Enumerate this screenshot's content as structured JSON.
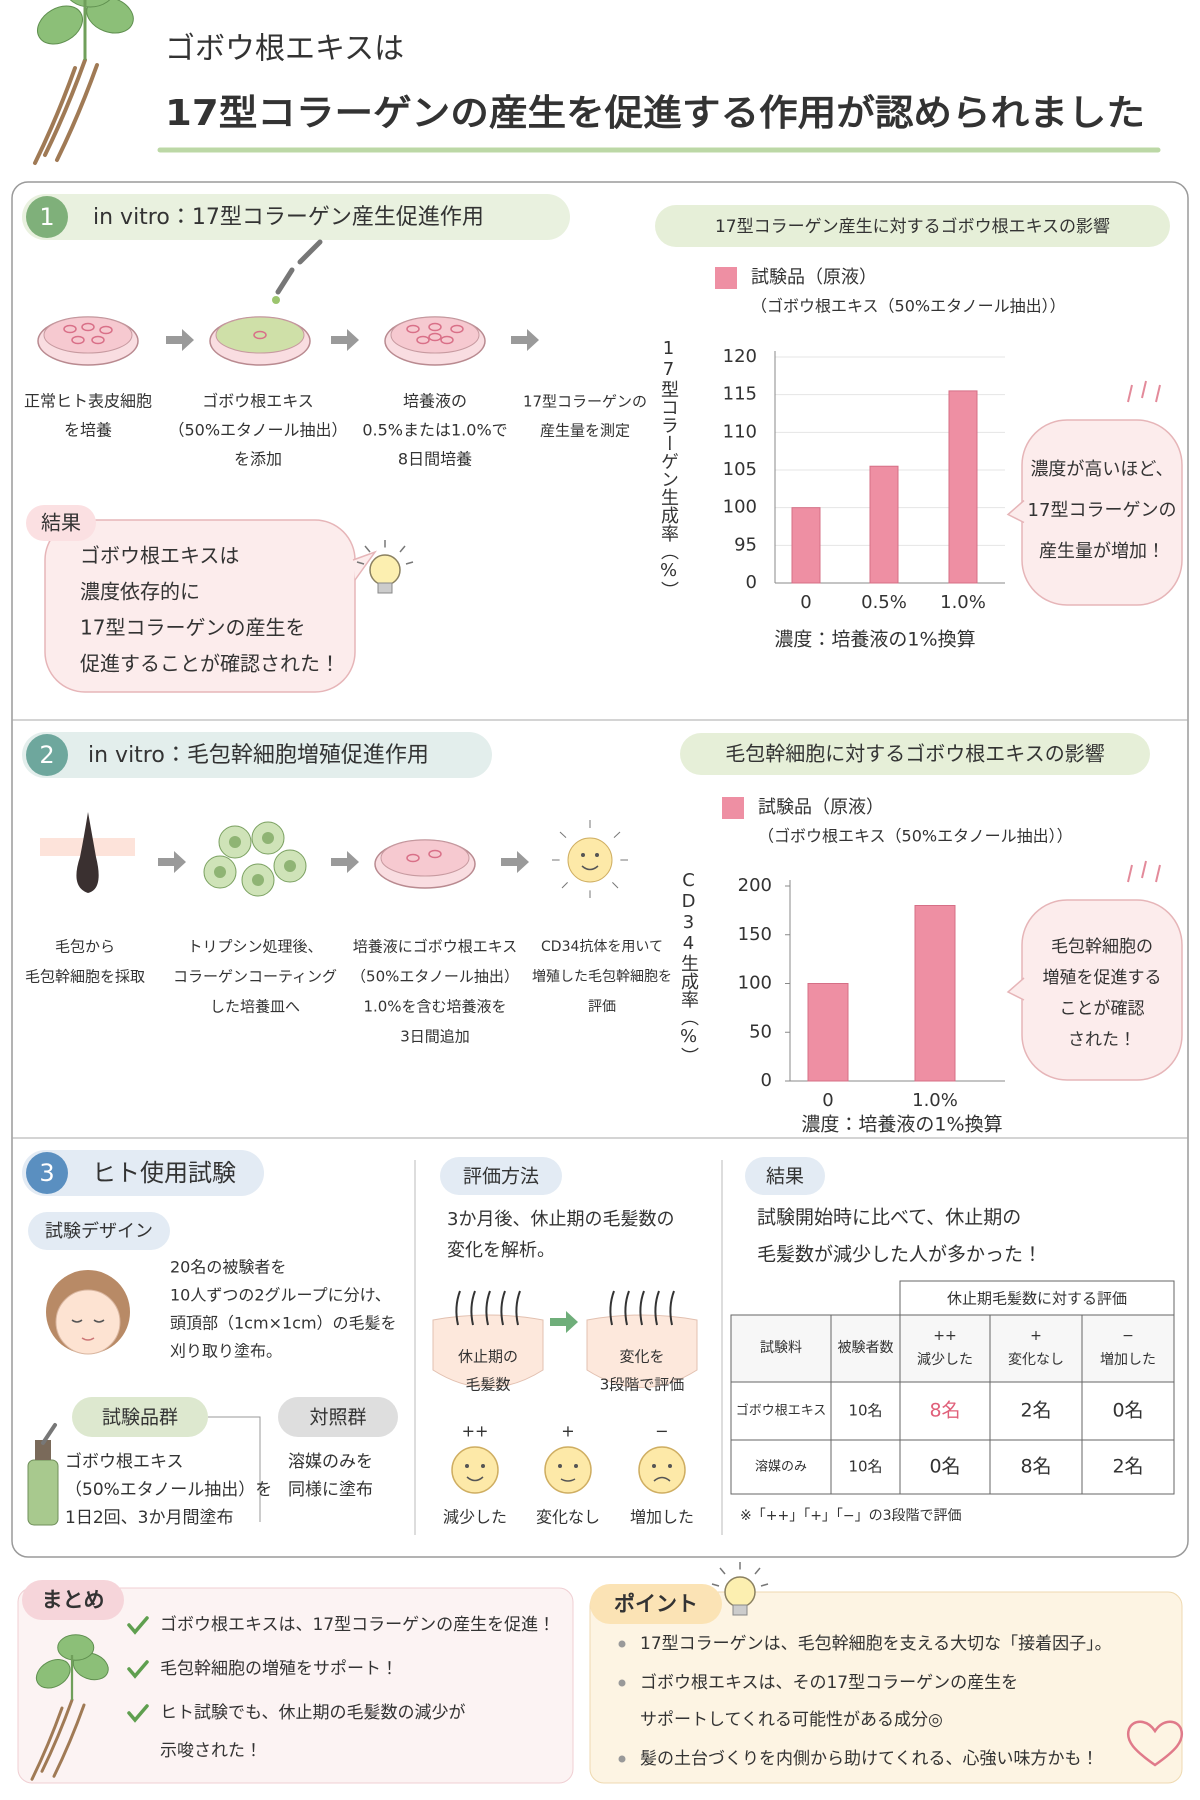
{
  "header": {
    "title": "ゴボウ根エキスは",
    "headline": "17型コラーゲンの産生を促進する作用が認められました"
  },
  "section1": {
    "number": "1",
    "title": "in vitro：17型コラーゲン産生促進作用",
    "steps": [
      [
        "正常ヒト表皮細胞",
        "を培養"
      ],
      [
        "ゴボウ根エキス",
        "（50%エタノール抽出）",
        "を添加"
      ],
      [
        "培養液の",
        "0.5%または1.0%で",
        "8日間培養"
      ],
      [
        "17型コラーゲンの",
        "産生量を測定"
      ]
    ],
    "result": {
      "label": "結果",
      "lines": [
        "ゴボウ根エキスは",
        "濃度依存的に",
        "17型コラーゲンの産生を",
        "促進することが確認された！"
      ]
    },
    "chart": {
      "type": "bar",
      "title": "17型コラーゲン産生に対するゴボウ根エキスの影響",
      "legend": "試験品（原液）",
      "legend_note": "（ゴボウ根エキス（50%エタノール抽出））",
      "y_label": "17型コラーゲン生成率（%）",
      "x_label": "濃度：培養液の1%換算",
      "categories": [
        "0",
        "0.5%",
        "1.0%"
      ],
      "values": [
        100,
        105.5,
        115.5
      ],
      "color": "#ee8fa3",
      "ylim": [
        0,
        120
      ],
      "yticks": [
        0,
        95,
        100,
        105,
        110,
        115,
        120
      ],
      "grid": true
    },
    "callout": [
      "濃度が高いほど、",
      "17型コラーゲンの",
      "産生量が増加！"
    ]
  },
  "section2": {
    "number": "2",
    "title": "in vitro：毛包幹細胞増殖促進作用",
    "steps": [
      [
        "毛包から",
        "毛包幹細胞を採取"
      ],
      [
        "トリプシン処理後、",
        "コラーゲンコーティング",
        "した培養皿へ"
      ],
      [
        "培養液にゴボウ根エキス",
        "（50%エタノール抽出）",
        "1.0%を含む培養液を",
        "3日間追加"
      ],
      [
        "CD34抗体を用いて",
        "増殖した毛包幹細胞を",
        "評価"
      ]
    ],
    "chart": {
      "type": "bar",
      "title": "毛包幹細胞に対するゴボウ根エキスの影響",
      "legend": "試験品（原液）",
      "legend_note": "（ゴボウ根エキス（50%エタノール抽出））",
      "y_label": "CD34生成率（%）",
      "x_label": "濃度：培養液の1%換算",
      "categories": [
        "0",
        "1.0%"
      ],
      "values": [
        100,
        180
      ],
      "color": "#ee8fa3",
      "ylim": [
        0,
        200
      ],
      "yticks": [
        0,
        50,
        100,
        150,
        200
      ],
      "grid": false
    },
    "callout": [
      "毛包幹細胞の",
      "増殖を促進する",
      "ことが確認",
      "された！"
    ]
  },
  "section3": {
    "number": "3",
    "title": "ヒト使用試験",
    "design": {
      "label": "試験デザイン",
      "lines": [
        "20名の被験者を",
        "10人ずつの2グループに分け、",
        "頭頂部（1cm×1cm）の毛髪を",
        "刈り取り塗布。"
      ],
      "test_group": {
        "label": "試験品群",
        "lines": [
          "ゴボウ根エキス",
          "（50%エタノール抽出）を",
          "1日2回、3か月間塗布"
        ]
      },
      "control_group": {
        "label": "対照群",
        "lines": [
          "溶媒のみを",
          "同様に塗布"
        ]
      }
    },
    "method": {
      "label": "評価方法",
      "lines": [
        "3か月後、休止期の毛髪数の",
        "変化を解析。"
      ],
      "before": [
        "休止期の",
        "毛髪数"
      ],
      "after": [
        "変化を",
        "3段階で評価"
      ],
      "scale": [
        {
          "symbol": "++",
          "label": "減少した"
        },
        {
          "symbol": "+",
          "label": "変化なし"
        },
        {
          "symbol": "−",
          "label": "増加した"
        }
      ]
    },
    "result": {
      "label": "結果",
      "lines": [
        "試験開始時に比べて、休止期の",
        "毛髪数が減少した人が多かった！"
      ],
      "table": {
        "group_header": "休止期毛髪数に対する評価",
        "columns": [
          [
            "試験料"
          ],
          [
            "被験者数"
          ],
          [
            "++",
            "減少した"
          ],
          [
            "+",
            "変化なし"
          ],
          [
            "−",
            "増加した"
          ]
        ],
        "rows": [
          [
            "ゴボウ根エキス",
            "10名",
            "8名",
            "2名",
            "0名"
          ],
          [
            "溶媒のみ",
            "10名",
            "0名",
            "8名",
            "2名"
          ]
        ]
      },
      "note": "※「++」「+」「−」の3段階で評価"
    }
  },
  "summary": {
    "label": "まとめ",
    "items": [
      [
        "ゴボウ根エキスは、17型コラーゲンの産生を促進！"
      ],
      [
        "毛包幹細胞の増殖をサポート！"
      ],
      [
        "ヒト試験でも、休止期の毛髪数の減少が",
        "示唆された！"
      ]
    ]
  },
  "point": {
    "label": "ポイント",
    "items": [
      [
        "17型コラーゲンは、毛包幹細胞を支える大切な「接着因子」。"
      ],
      [
        "ゴボウ根エキスは、その17型コラーゲンの産生を",
        "サポートしてくれる可能性がある成分◎"
      ],
      [
        "髪の土台づくりを内側から助けてくれる、心強い味方かも！"
      ]
    ]
  }
}
